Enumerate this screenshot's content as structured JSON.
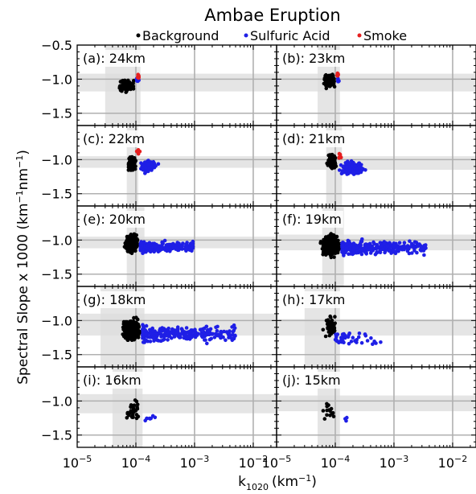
{
  "title": "Ambae Eruption",
  "legend": {
    "placement": "top-center",
    "entries": [
      {
        "label": "Background",
        "color": "#000000"
      },
      {
        "label": "Sulfuric Acid",
        "color": "#1f1fe6"
      },
      {
        "label": "Smoke",
        "color": "#e61f1f"
      }
    ]
  },
  "axes": {
    "xlabel_main": "k",
    "xlabel_sub": "1020",
    "xlabel_unit": "(km",
    "xlabel_unit_sup": "−1",
    "xlabel_close": ")",
    "ylabel_main": "Spectral Slope x 1000 (km",
    "ylabel_sup1": "−1",
    "ylabel_mid": "nm",
    "ylabel_sup2": "−1",
    "ylabel_close": ")",
    "x_ticks": [
      {
        "value": 1e-05,
        "base": "10",
        "exp": "−5"
      },
      {
        "value": 0.0001,
        "base": "10",
        "exp": "−4"
      },
      {
        "value": 0.001,
        "base": "10",
        "exp": "−3"
      },
      {
        "value": 0.01,
        "base": "10",
        "exp": "−2"
      }
    ],
    "y_ticks": [
      {
        "value": -0.5,
        "label": "−0.5"
      },
      {
        "value": -1.0,
        "label": "−1.0"
      },
      {
        "value": -1.5,
        "label": "−1.5"
      }
    ]
  },
  "chart_data": {
    "type": "scatter",
    "x_scale": "log",
    "xlim": [
      1e-05,
      0.025
    ],
    "ylim": [
      -1.68,
      -0.5
    ],
    "grid": true,
    "layout": "5x2 panels",
    "panels": [
      {
        "label": "(a): 24km",
        "ybox": [
          -1.18,
          -0.92
        ],
        "xbox": [
          3e-05,
          0.00012
        ],
        "clusters": [
          {
            "series": "Background",
            "x": [
              5e-05,
              0.0001
            ],
            "y": [
              -1.22,
              -0.98
            ],
            "n": 120
          },
          {
            "series": "Sulfuric Acid",
            "x": [
              0.0001,
              0.000115
            ],
            "y": [
              -1.05,
              -0.95
            ],
            "n": 8
          },
          {
            "series": "Smoke",
            "x": [
              0.000105,
              0.000115
            ],
            "y": [
              -1.02,
              -0.9
            ],
            "n": 10
          }
        ]
      },
      {
        "label": "(b): 23km",
        "ybox": [
          -1.18,
          -0.92
        ],
        "xbox": [
          5e-05,
          0.00012
        ],
        "clusters": [
          {
            "series": "Background",
            "x": [
              6e-05,
              0.000105
            ],
            "y": [
              -1.15,
              -0.9
            ],
            "n": 120
          },
          {
            "series": "Sulfuric Acid",
            "x": [
              0.000105,
              0.00012
            ],
            "y": [
              -1.1,
              -0.95
            ],
            "n": 8
          },
          {
            "series": "Smoke",
            "x": [
              0.000105,
              0.000115
            ],
            "y": [
              -1.0,
              -0.88
            ],
            "n": 10
          }
        ]
      },
      {
        "label": "(c): 22km",
        "ybox": [
          -1.12,
          -0.95
        ],
        "xbox": [
          7e-05,
          0.00011
        ],
        "clusters": [
          {
            "series": "Background",
            "x": [
              7e-05,
              0.000105
            ],
            "y": [
              -1.2,
              -0.92
            ],
            "n": 120
          },
          {
            "series": "Sulfuric Acid",
            "x": [
              0.000105,
              0.00025
            ],
            "y": [
              -1.22,
              -0.98
            ],
            "n": 90
          },
          {
            "series": "Smoke",
            "x": [
              0.0001,
              0.00012
            ],
            "y": [
              -0.95,
              -0.8
            ],
            "n": 8
          }
        ]
      },
      {
        "label": "(d): 21km",
        "ybox": [
          -1.15,
          -0.95
        ],
        "xbox": [
          7e-05,
          0.00013
        ],
        "clusters": [
          {
            "series": "Background",
            "x": [
              7e-05,
              0.00011
            ],
            "y": [
              -1.15,
              -0.9
            ],
            "n": 140
          },
          {
            "series": "Sulfuric Acid",
            "x": [
              0.00011,
              0.00035
            ],
            "y": [
              -1.25,
              -1.0
            ],
            "n": 140
          },
          {
            "series": "Smoke",
            "x": [
              0.00011,
              0.00013
            ],
            "y": [
              -1.05,
              -0.9
            ],
            "n": 6
          }
        ]
      },
      {
        "label": "(e): 20km",
        "ybox": [
          -1.12,
          -0.95
        ],
        "xbox": [
          7e-05,
          0.00014
        ],
        "clusters": [
          {
            "series": "Background",
            "x": [
              6e-05,
              0.00012
            ],
            "y": [
              -1.22,
              -0.88
            ],
            "n": 230
          },
          {
            "series": "Sulfuric Acid",
            "x": [
              0.00012,
              0.001
            ],
            "y": [
              -1.2,
              -1.0
            ],
            "n": 230
          }
        ]
      },
      {
        "label": "(f): 19km",
        "ybox": [
          -1.15,
          -0.92
        ],
        "xbox": [
          6e-05,
          0.00014
        ],
        "clusters": [
          {
            "series": "Background",
            "x": [
              5.5e-05,
              0.00013
            ],
            "y": [
              -1.28,
              -0.88
            ],
            "n": 320
          },
          {
            "series": "Sulfuric Acid",
            "x": [
              0.00013,
              0.0035
            ],
            "y": [
              -1.25,
              -0.98
            ],
            "n": 320
          }
        ]
      },
      {
        "label": "(g): 18km",
        "ybox": [
          -1.22,
          -0.9
        ],
        "xbox": [
          2.5e-05,
          0.00014
        ],
        "clusters": [
          {
            "series": "Background",
            "x": [
              5.5e-05,
              0.00013
            ],
            "y": [
              -1.35,
              -0.92
            ],
            "n": 260
          },
          {
            "series": "Sulfuric Acid",
            "x": [
              0.00013,
              0.005
            ],
            "y": [
              -1.35,
              -1.05
            ],
            "n": 260
          }
        ]
      },
      {
        "label": "(h): 17km",
        "ybox": [
          -1.22,
          -0.98
        ],
        "xbox": [
          3e-05,
          0.00012
        ],
        "clusters": [
          {
            "series": "Background",
            "x": [
              6e-05,
              0.00012
            ],
            "y": [
              -1.32,
              -0.88
            ],
            "n": 45
          },
          {
            "series": "Sulfuric Acid",
            "x": [
              0.0001,
              0.0006
            ],
            "y": [
              -1.4,
              -1.15
            ],
            "n": 45
          }
        ]
      },
      {
        "label": "(i): 16km",
        "ybox": [
          -1.18,
          -0.9
        ],
        "xbox": [
          4e-05,
          0.00013
        ],
        "clusters": [
          {
            "series": "Background",
            "x": [
              6e-05,
              0.00013
            ],
            "y": [
              -1.35,
              -0.95
            ],
            "n": 30
          },
          {
            "series": "Sulfuric Acid",
            "x": [
              0.00013,
              0.00025
            ],
            "y": [
              -1.32,
              -1.2
            ],
            "n": 8
          }
        ]
      },
      {
        "label": "(j): 15km",
        "ybox": [
          -1.15,
          -0.92
        ],
        "xbox": [
          5e-05,
          0.00012
        ],
        "clusters": [
          {
            "series": "Background",
            "x": [
              6e-05,
              0.00012
            ],
            "y": [
              -1.3,
              -0.98
            ],
            "n": 14
          },
          {
            "series": "Sulfuric Acid",
            "x": [
              0.00012,
              0.00018
            ],
            "y": [
              -1.32,
              -1.22
            ],
            "n": 3
          }
        ]
      }
    ]
  }
}
